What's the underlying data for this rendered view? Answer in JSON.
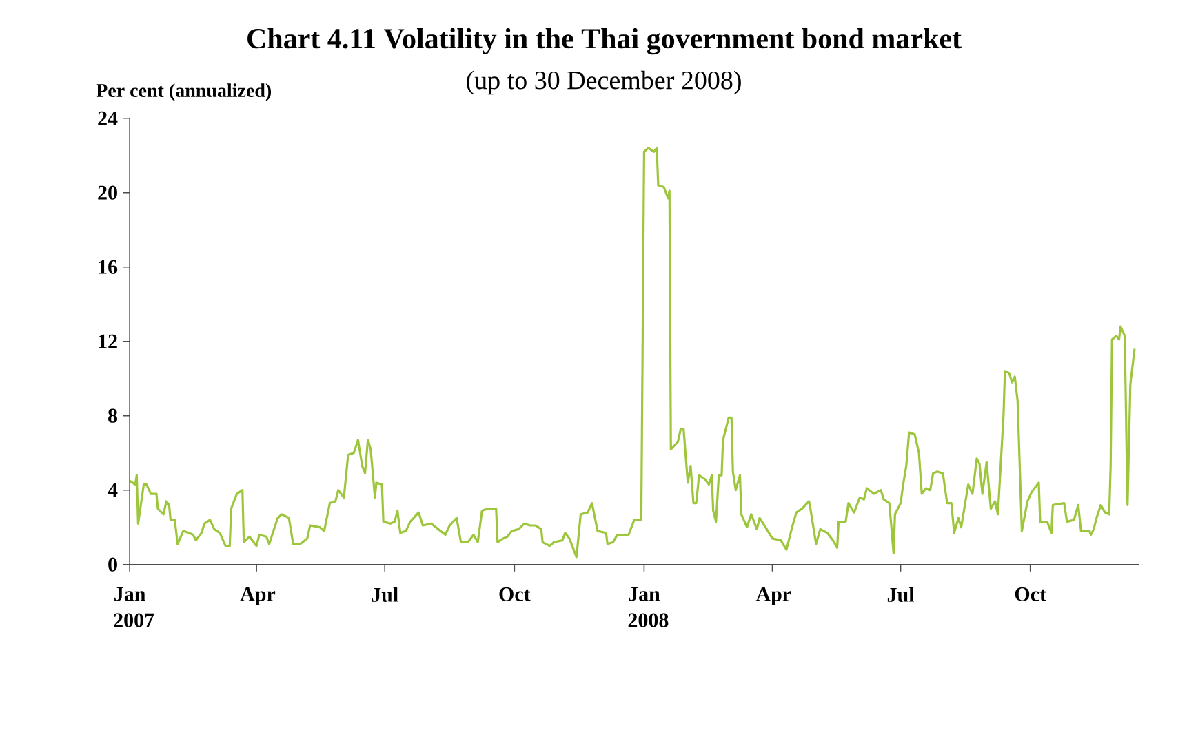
{
  "chart_data": {
    "type": "line",
    "title": "Chart 4.11  Volatility in the Thai government bond market",
    "subtitle": "(up to 30 December 2008)",
    "ylabel": "Per cent (annualized)",
    "color": "#9dc63c",
    "xlim": [
      "2007-01-01",
      "2008-12-17"
    ],
    "ylim": [
      0,
      24
    ],
    "yticks": [
      0,
      4,
      8,
      12,
      16,
      20,
      24
    ],
    "xticks": [
      {
        "value": "2007-01-01",
        "label": "Jan 2007"
      },
      {
        "value": "2007-04-01",
        "label": "Apr"
      },
      {
        "value": "2007-07-01",
        "label": "Jul"
      },
      {
        "value": "2007-10-01",
        "label": "Oct"
      },
      {
        "value": "2008-01-01",
        "label": "Jan 2008"
      },
      {
        "value": "2008-04-01",
        "label": "Apr"
      },
      {
        "value": "2008-07-01",
        "label": "Jul"
      },
      {
        "value": "2008-10-01",
        "label": "Oct"
      }
    ],
    "x": [
      "2007-01-01",
      "2007-01-05",
      "2007-01-06",
      "2007-01-07",
      "2007-01-11",
      "2007-01-13",
      "2007-01-16",
      "2007-01-20",
      "2007-01-21",
      "2007-01-25",
      "2007-01-27",
      "2007-01-29",
      "2007-01-30",
      "2007-02-02",
      "2007-02-04",
      "2007-02-08",
      "2007-02-12",
      "2007-02-15",
      "2007-02-17",
      "2007-02-21",
      "2007-02-23",
      "2007-02-27",
      "2007-03-02",
      "2007-03-06",
      "2007-03-10",
      "2007-03-13",
      "2007-03-14",
      "2007-03-18",
      "2007-03-22",
      "2007-03-23",
      "2007-03-27",
      "2007-04-01",
      "2007-04-03",
      "2007-04-08",
      "2007-04-10",
      "2007-04-16",
      "2007-04-19",
      "2007-04-24",
      "2007-04-27",
      "2007-05-02",
      "2007-05-07",
      "2007-05-09",
      "2007-05-16",
      "2007-05-19",
      "2007-05-23",
      "2007-05-27",
      "2007-05-29",
      "2007-06-02",
      "2007-06-05",
      "2007-06-09",
      "2007-06-12",
      "2007-06-15",
      "2007-06-17",
      "2007-06-19",
      "2007-06-21",
      "2007-06-24",
      "2007-06-25",
      "2007-06-29",
      "2007-06-30",
      "2007-07-05",
      "2007-07-08",
      "2007-07-10",
      "2007-07-12",
      "2007-07-16",
      "2007-07-19",
      "2007-07-25",
      "2007-07-28",
      "2007-08-03",
      "2007-08-08",
      "2007-08-13",
      "2007-08-16",
      "2007-08-21",
      "2007-08-24",
      "2007-08-29",
      "2007-09-02",
      "2007-09-05",
      "2007-09-08",
      "2007-09-12",
      "2007-09-18",
      "2007-09-19",
      "2007-09-23",
      "2007-09-26",
      "2007-09-29",
      "2007-10-04",
      "2007-10-08",
      "2007-10-12",
      "2007-10-16",
      "2007-10-20",
      "2007-10-21",
      "2007-10-26",
      "2007-10-29",
      "2007-11-04",
      "2007-11-06",
      "2007-11-09",
      "2007-11-14",
      "2007-11-17",
      "2007-11-22",
      "2007-11-25",
      "2007-11-29",
      "2007-12-05",
      "2007-12-06",
      "2007-12-10",
      "2007-12-13",
      "2007-12-21",
      "2007-12-25",
      "2007-12-30",
      "2008-01-01",
      "2008-01-04",
      "2008-01-08",
      "2008-01-10",
      "2008-01-11",
      "2008-01-15",
      "2008-01-18",
      "2008-01-19",
      "2008-01-20",
      "2008-01-25",
      "2008-01-27",
      "2008-01-29",
      "2008-02-01",
      "2008-02-03",
      "2008-02-05",
      "2008-02-07",
      "2008-02-09",
      "2008-02-13",
      "2008-02-16",
      "2008-02-18",
      "2008-02-19",
      "2008-02-21",
      "2008-02-23",
      "2008-02-25",
      "2008-02-26",
      "2008-03-01",
      "2008-03-03",
      "2008-03-04",
      "2008-03-06",
      "2008-03-09",
      "2008-03-10",
      "2008-03-14",
      "2008-03-17",
      "2008-03-21",
      "2008-03-23",
      "2008-03-28",
      "2008-04-01",
      "2008-04-07",
      "2008-04-11",
      "2008-04-15",
      "2008-04-18",
      "2008-04-22",
      "2008-04-27",
      "2008-04-28",
      "2008-05-02",
      "2008-05-05",
      "2008-05-10",
      "2008-05-14",
      "2008-05-17",
      "2008-05-18",
      "2008-05-23",
      "2008-05-25",
      "2008-05-29",
      "2008-06-02",
      "2008-06-05",
      "2008-06-07",
      "2008-06-12",
      "2008-06-17",
      "2008-06-19",
      "2008-06-23",
      "2008-06-26",
      "2008-06-27",
      "2008-07-01",
      "2008-07-03",
      "2008-07-05",
      "2008-07-07",
      "2008-07-11",
      "2008-07-14",
      "2008-07-16",
      "2008-07-19",
      "2008-07-22",
      "2008-07-24",
      "2008-07-27",
      "2008-07-31",
      "2008-08-03",
      "2008-08-06",
      "2008-08-08",
      "2008-08-11",
      "2008-08-13",
      "2008-08-16",
      "2008-08-18",
      "2008-08-21",
      "2008-08-24",
      "2008-08-26",
      "2008-08-28",
      "2008-08-31",
      "2008-09-03",
      "2008-09-06",
      "2008-09-08",
      "2008-09-12",
      "2008-09-13",
      "2008-09-16",
      "2008-09-18",
      "2008-09-20",
      "2008-09-22",
      "2008-09-25",
      "2008-09-29",
      "2008-10-02",
      "2008-10-07",
      "2008-10-08",
      "2008-10-13",
      "2008-10-16",
      "2008-10-17",
      "2008-10-25",
      "2008-10-27",
      "2008-11-01",
      "2008-11-04",
      "2008-11-06",
      "2008-11-12",
      "2008-11-13",
      "2008-11-15",
      "2008-11-17",
      "2008-11-20",
      "2008-11-23",
      "2008-11-26",
      "2008-11-27",
      "2008-11-28",
      "2008-12-01",
      "2008-12-03",
      "2008-12-04",
      "2008-12-07",
      "2008-12-09",
      "2008-12-11",
      "2008-12-14"
    ],
    "values": [
      4.5,
      4.3,
      4.8,
      2.2,
      4.3,
      4.3,
      3.8,
      3.8,
      3.0,
      2.7,
      3.4,
      3.2,
      2.4,
      2.4,
      1.1,
      1.8,
      1.7,
      1.6,
      1.3,
      1.7,
      2.2,
      2.4,
      1.9,
      1.7,
      1.0,
      1.0,
      3.0,
      3.8,
      4.0,
      1.2,
      1.5,
      1.0,
      1.6,
      1.5,
      1.1,
      2.5,
      2.7,
      2.5,
      1.1,
      1.1,
      1.4,
      2.1,
      2.0,
      1.8,
      3.3,
      3.4,
      4.0,
      3.6,
      5.9,
      6.0,
      6.7,
      5.3,
      4.9,
      6.7,
      6.2,
      3.6,
      4.4,
      4.3,
      2.3,
      2.2,
      2.3,
      2.9,
      1.7,
      1.8,
      2.3,
      2.8,
      2.1,
      2.2,
      1.9,
      1.6,
      2.1,
      2.5,
      1.2,
      1.2,
      1.6,
      1.2,
      2.9,
      3.0,
      3.0,
      1.2,
      1.4,
      1.5,
      1.8,
      1.9,
      2.2,
      2.1,
      2.1,
      1.9,
      1.2,
      1.0,
      1.2,
      1.3,
      1.7,
      1.4,
      0.4,
      2.7,
      2.8,
      3.3,
      1.8,
      1.7,
      1.1,
      1.2,
      1.6,
      1.6,
      2.4,
      2.4,
      22.2,
      22.4,
      22.2,
      22.4,
      20.4,
      20.3,
      19.7,
      20.1,
      6.2,
      6.6,
      7.3,
      7.3,
      4.4,
      5.3,
      3.3,
      3.3,
      4.8,
      4.6,
      4.3,
      4.8,
      2.9,
      2.3,
      4.8,
      4.8,
      6.7,
      7.9,
      7.9,
      5.0,
      4.0,
      4.8,
      2.7,
      2.0,
      2.7,
      1.9,
      2.5,
      1.9,
      1.4,
      1.3,
      0.8,
      2.0,
      2.8,
      3.0,
      3.4,
      3.0,
      1.1,
      1.9,
      1.7,
      1.3,
      0.9,
      2.3,
      2.3,
      3.3,
      2.8,
      3.6,
      3.5,
      4.1,
      3.8,
      4.0,
      3.5,
      3.3,
      0.6,
      2.7,
      3.3,
      4.4,
      5.3,
      7.1,
      7.0,
      6.0,
      3.8,
      4.1,
      4.0,
      4.9,
      5.0,
      4.9,
      3.3,
      3.3,
      1.7,
      2.5,
      2.0,
      3.4,
      4.3,
      3.8,
      5.7,
      5.4,
      3.8,
      5.5,
      3.0,
      3.4,
      2.7,
      8.0,
      10.4,
      10.3,
      9.8,
      10.1,
      8.8,
      1.8,
      3.4,
      3.9,
      4.4,
      2.3,
      2.3,
      1.7,
      3.2,
      3.3,
      2.3,
      2.4,
      3.2,
      1.8,
      1.8,
      1.6,
      1.9,
      2.5,
      3.2,
      2.8,
      2.7,
      5.3,
      12.1,
      12.3,
      12.1,
      12.8,
      12.3,
      3.2,
      9.7,
      11.6
    ]
  }
}
